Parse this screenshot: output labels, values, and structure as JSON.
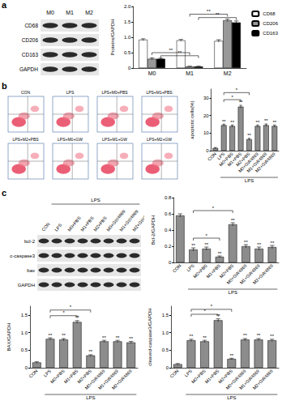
{
  "panel_labels": [
    "a",
    "b",
    "c"
  ],
  "blot_a": {
    "lanes": [
      "M0",
      "M1",
      "M2"
    ],
    "rows": [
      "CD68",
      "CD206",
      "CD163",
      "GAPDH"
    ]
  },
  "flow_b": {
    "plots": [
      "CON",
      "LPS",
      "LPS+M0+PBS",
      "LPS+M1+PBS",
      "LPS+M2+PBS",
      "LPS+M0+GW",
      "LPS+M1+GW",
      "LPS+M2+GW"
    ]
  },
  "blot_c": {
    "group": "LPS",
    "lanes": [
      "CON",
      "LPS",
      "M0+PBS",
      "M1+PBS",
      "M2+PBS",
      "M0+GW4869",
      "M1+GW4869",
      "M2+GW4869"
    ],
    "rows": [
      "bcl-2",
      "c-caspase3",
      "bax",
      "GAPDH"
    ]
  },
  "chart_data": [
    {
      "type": "bar",
      "y_label": "Proteins/GAPDH",
      "categories": [
        "M0",
        "M1",
        "M2"
      ],
      "series": [
        {
          "name": "CD68",
          "color": "#ffffff",
          "values": [
            0.92,
            0.9,
            0.88
          ],
          "errors": [
            0.03,
            0.03,
            0.04
          ]
        },
        {
          "name": "CD206",
          "color": "#999999",
          "values": [
            0.3,
            0.05,
            1.55
          ],
          "errors": [
            0.03,
            0.01,
            0.04
          ]
        },
        {
          "name": "CD163",
          "color": "#000000",
          "values": [
            0.3,
            0.05,
            1.48
          ],
          "errors": [
            0.02,
            0.01,
            0.05
          ]
        }
      ],
      "ylim": [
        0,
        2
      ],
      "yticks": [
        0,
        0.5,
        {
          "value": 1,
          "label": "1.0"
        },
        1.5,
        {
          "value": 2,
          "label": "2.0"
        }
      ],
      "grid": false,
      "legend": "right",
      "brackets": [
        {
          "series": "CD206",
          "from": "M0",
          "to": "M1",
          "y": 0.5,
          "label": "**"
        },
        {
          "series": "CD163",
          "from": "M0",
          "to": "M1",
          "y": 0.4,
          "label": "**"
        },
        {
          "series": "CD206",
          "from": "M1",
          "to": "M2",
          "y": 1.75,
          "label": "**"
        },
        {
          "series": "CD163",
          "from": "M1",
          "to": "M2",
          "y": 1.64,
          "label": "**"
        }
      ]
    },
    {
      "type": "bar",
      "y_label": "apoptotic cells(%)",
      "categories": [
        "CON",
        "LPS",
        "M0+PBS",
        "M1+PBS",
        "M2+PBS",
        "M0+GW4869",
        "M1+GW4869",
        "M2+GW4869"
      ],
      "values": [
        1.5,
        14.5,
        14,
        25,
        6.5,
        14,
        14.5,
        14
      ],
      "errors": [
        0.3,
        0.6,
        0.6,
        0.8,
        0.5,
        0.6,
        0.7,
        0.6
      ],
      "stars": [
        null,
        "**",
        "**",
        "**",
        "**",
        "**",
        "**",
        "**"
      ],
      "color": "#8c8c8c",
      "ylim": [
        0,
        35
      ],
      "yticks": [
        0,
        10,
        20,
        30
      ],
      "grid": false,
      "brackets": [
        {
          "from": "LPS",
          "to": "M1+PBS",
          "y": 29,
          "label": "*"
        },
        {
          "from": "LPS",
          "to": "M2+PBS",
          "y": 33,
          "label": "*"
        }
      ],
      "annotations": [
        {
          "text": "LPS",
          "from": "LPS",
          "to": "M2+GW4869"
        }
      ]
    },
    {
      "type": "bar",
      "y_label": "Bcl-2/GAPDH",
      "categories": [
        "CON",
        "LPS",
        "M0+PBS",
        "M1+PBS",
        "M2+PBS",
        "M0+GW4869",
        "M1+GW4869",
        "M2+GW4869"
      ],
      "values": [
        0.58,
        0.16,
        0.17,
        0.07,
        0.47,
        0.2,
        0.17,
        0.19
      ],
      "errors": [
        0.02,
        0.02,
        0.02,
        0.01,
        0.02,
        0.02,
        0.02,
        0.02
      ],
      "stars": [
        null,
        "**",
        "**",
        "**",
        "**",
        "**",
        "**",
        "**"
      ],
      "color": "#8c8c8c",
      "ylim": [
        0,
        0.8
      ],
      "yticks": [
        0,
        0.2,
        0.4,
        0.6,
        0.8
      ],
      "grid": false,
      "brackets": [
        {
          "from": "LPS",
          "to": "M1+PBS",
          "y": 0.3,
          "label": "*"
        },
        {
          "from": "LPS",
          "to": "M2+PBS",
          "y": 0.64,
          "label": "*"
        }
      ],
      "annotations": [
        {
          "text": "LPS",
          "from": "LPS",
          "to": "M2+GW4869"
        }
      ]
    },
    {
      "type": "bar",
      "y_label": "BAX/GAPDH",
      "categories": [
        "CON",
        "LPS",
        "M0+PBS",
        "M1+PBS",
        "M2+PBS",
        "M0+GW4869",
        "M1+GW4869",
        "M2+GW4869"
      ],
      "values": [
        0.15,
        0.82,
        0.8,
        1.3,
        0.35,
        0.75,
        0.75,
        0.72
      ],
      "errors": [
        0.02,
        0.03,
        0.03,
        0.04,
        0.02,
        0.03,
        0.03,
        0.03
      ],
      "stars": [
        null,
        "**",
        "**",
        "**",
        "**",
        "**",
        "**",
        "**"
      ],
      "color": "#8c8c8c",
      "ylim": [
        0,
        1.75
      ],
      "yticks": [
        0,
        0.5,
        {
          "value": 1,
          "label": "1.0"
        },
        1.5
      ],
      "grid": false,
      "brackets": [
        {
          "from": "LPS",
          "to": "M1+PBS",
          "y": 1.48,
          "label": "*"
        },
        {
          "from": "LPS",
          "to": "M2+PBS",
          "y": 1.64,
          "label": "*"
        }
      ],
      "annotations": [
        {
          "text": "LPS",
          "from": "LPS",
          "to": "M2+GW4869"
        }
      ]
    },
    {
      "type": "bar",
      "y_label": "cleaved-caspase3/GAPDH",
      "categories": [
        "CON",
        "LPS",
        "M0+PBS",
        "M1+PBS",
        "M2+PBS",
        "M0+GW4869",
        "M1+GW4869",
        "M2+GW4869"
      ],
      "values": [
        0.1,
        0.78,
        0.75,
        1.35,
        0.25,
        0.8,
        0.8,
        0.78
      ],
      "errors": [
        0.02,
        0.03,
        0.03,
        0.04,
        0.02,
        0.03,
        0.03,
        0.03
      ],
      "stars": [
        null,
        "**",
        "**",
        "**",
        "**",
        "**",
        "**",
        "**"
      ],
      "color": "#8c8c8c",
      "ylim": [
        0,
        1.75
      ],
      "yticks": [
        0,
        0.5,
        {
          "value": 1,
          "label": "1.0"
        },
        1.5
      ],
      "grid": false,
      "brackets": [
        {
          "from": "LPS",
          "to": "M1+PBS",
          "y": 1.52,
          "label": "*"
        },
        {
          "from": "LPS",
          "to": "M2+PBS",
          "y": 1.66,
          "label": "*"
        }
      ],
      "annotations": [
        {
          "text": "LPS",
          "from": "LPS",
          "to": "M2+GW4869"
        }
      ]
    }
  ]
}
